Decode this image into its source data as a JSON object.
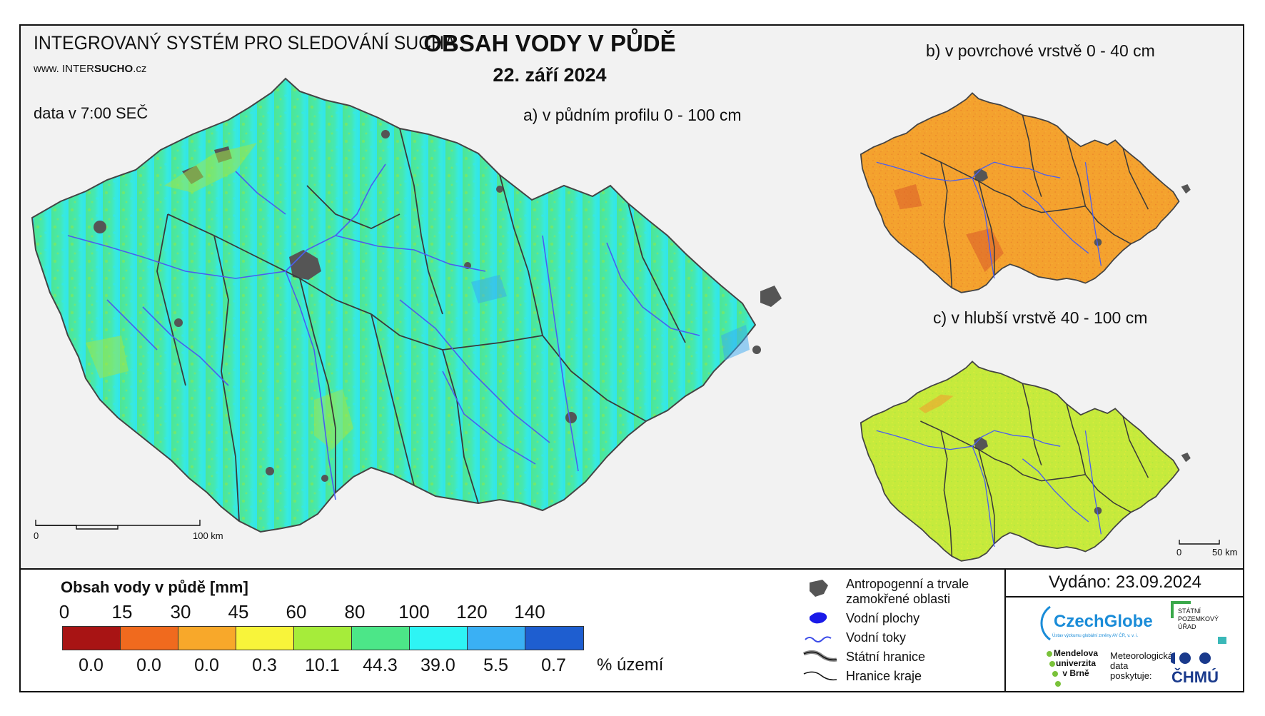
{
  "header": {
    "system_title": "INTEGROVANÝ SYSTÉM PRO SLEDOVÁNÍ SUCHA",
    "website_prefix": "www. INTER",
    "website_bold": "SUCHO",
    "website_suffix": ".cz",
    "data_time": "data v 7:00 SEČ",
    "main_title": "OBSAH VODY V PŮDĚ",
    "main_date": "22. září 2024"
  },
  "maps": {
    "a_label": "a) v půdním profilu 0 - 100 cm",
    "b_label": "b) v povrchové vrstvě 0 - 40 cm",
    "c_label": "c) v hlubší vrstvě 40 - 100 cm",
    "scale_main": {
      "start": "0",
      "end": "100 km"
    },
    "scale_small": {
      "start": "0",
      "end": "50 km"
    }
  },
  "legend": {
    "title": "Obsah vody v půdě  [mm]",
    "breaks": [
      "0",
      "15",
      "30",
      "45",
      "60",
      "80",
      "100",
      "120",
      "140"
    ],
    "classes": [
      {
        "color": "#a81414",
        "percent": "0.0"
      },
      {
        "color": "#f06a1e",
        "percent": "0.0"
      },
      {
        "color": "#f8a82a",
        "percent": "0.0"
      },
      {
        "color": "#f8f43a",
        "percent": "0.3"
      },
      {
        "color": "#a6ec3a",
        "percent": "10.1"
      },
      {
        "color": "#4ce688",
        "percent": "44.3"
      },
      {
        "color": "#2ef4f4",
        "percent": "39.0"
      },
      {
        "color": "#3ab0f4",
        "percent": "5.5"
      },
      {
        "color": "#1e5ed0",
        "percent": "0.7"
      }
    ],
    "percent_unit": "% území"
  },
  "symbols": {
    "anthropogenic_1": "Antropogenní a trvale",
    "anthropogenic_2": "zamokřené oblasti",
    "water_bodies": "Vodní plochy",
    "water_courses": "Vodní toky",
    "state_border": "Státní hranice",
    "region_border": "Hranice kraje"
  },
  "footer": {
    "issued": "Vydáno: 23.09.2024",
    "czechglobe": "CzechGlobe",
    "czechglobe_sub": "Ústav výzkumu globální změny AV ČR, v. v. i.",
    "spu_1": "STÁTNÍ",
    "spu_2": "POZEMKOVÝ",
    "spu_3": "ÚŘAD",
    "mendelu_1": "Mendelova",
    "mendelu_2": "univerzita",
    "mendelu_3": "v Brně",
    "meteo_1": "Meteorologická",
    "meteo_2": "data",
    "meteo_3": "poskytuje:",
    "chmu": "ČHMÚ"
  },
  "colors": {
    "map_a_base": "#52e49a",
    "map_a_east": "#38e8e8",
    "map_b_base": "#f4a22e",
    "map_c_base": "#c8ec3a",
    "rivers": "#4a5ef0",
    "borders": "#333333",
    "urban": "#555555"
  }
}
